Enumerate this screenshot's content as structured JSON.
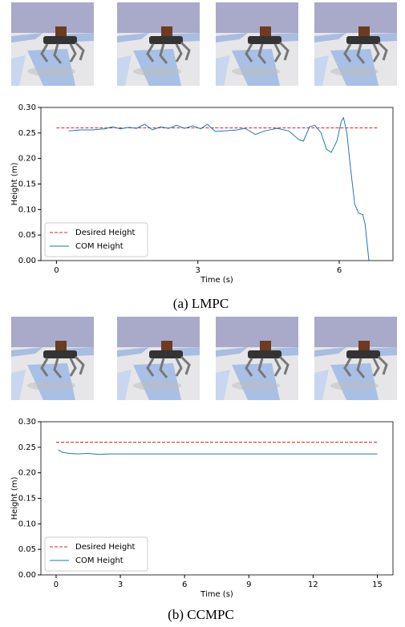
{
  "chart_data": [
    {
      "type": "line",
      "caption": "(a) LMPC",
      "xlabel": "Time (s)",
      "ylabel": "Height (m)",
      "xlim": [
        -0.33,
        7.14
      ],
      "ylim": [
        0,
        0.3
      ],
      "xticks": [
        0,
        3,
        6
      ],
      "yticks": [
        {
          "value": 0,
          "label": "0.00"
        },
        {
          "value": 0.05,
          "label": "0.05"
        },
        {
          "value": 0.1,
          "label": "0.10"
        },
        {
          "value": 0.15,
          "label": "0.15"
        },
        {
          "value": 0.2,
          "label": "0.20"
        },
        {
          "value": 0.25,
          "label": "0.25"
        },
        {
          "value": 0.3,
          "label": "0.30"
        }
      ],
      "legend": "lower left",
      "series": [
        {
          "name": "Desired Height",
          "color": "#d62728",
          "style": "dashed",
          "x": [
            0,
            6.84
          ],
          "values": [
            0.26,
            0.26
          ]
        },
        {
          "name": "COM Height",
          "color": "#1f77b4",
          "style": "solid",
          "x": [
            0.26,
            0.51,
            0.77,
            1.02,
            1.19,
            1.36,
            1.53,
            1.7,
            1.87,
            2.04,
            2.21,
            2.38,
            2.55,
            2.72,
            2.89,
            3.06,
            3.2,
            3.37,
            3.57,
            3.83,
            4.0,
            4.22,
            4.42,
            4.68,
            4.93,
            5.14,
            5.24,
            5.37,
            5.48,
            5.61,
            5.73,
            5.83,
            5.95,
            6.04,
            6.09,
            6.16,
            6.24,
            6.33,
            6.41,
            6.5,
            6.55,
            6.63
          ],
          "values": [
            0.254,
            0.256,
            0.256,
            0.258,
            0.262,
            0.258,
            0.261,
            0.259,
            0.267,
            0.256,
            0.262,
            0.259,
            0.265,
            0.259,
            0.264,
            0.258,
            0.267,
            0.253,
            0.254,
            0.256,
            0.259,
            0.247,
            0.254,
            0.259,
            0.254,
            0.237,
            0.234,
            0.262,
            0.265,
            0.251,
            0.218,
            0.212,
            0.234,
            0.272,
            0.28,
            0.251,
            0.181,
            0.11,
            0.093,
            0.09,
            0.071,
            0
          ]
        }
      ]
    },
    {
      "type": "line",
      "caption": "(b) CCMPC",
      "xlabel": "Time (s)",
      "ylabel": "Height (m)",
      "xlim": [
        -0.71,
        15.73
      ],
      "ylim": [
        0,
        0.3
      ],
      "xticks": [
        0,
        3,
        6,
        9,
        12,
        15
      ],
      "yticks": [
        {
          "value": 0,
          "label": "0.00"
        },
        {
          "value": 0.05,
          "label": "0.05"
        },
        {
          "value": 0.1,
          "label": "0.10"
        },
        {
          "value": 0.15,
          "label": "0.15"
        },
        {
          "value": 0.2,
          "label": "0.20"
        },
        {
          "value": 0.25,
          "label": "0.25"
        },
        {
          "value": 0.3,
          "label": "0.30"
        }
      ],
      "legend": "lower left",
      "series": [
        {
          "name": "Desired Height",
          "color": "#d62728",
          "style": "dashed",
          "x": [
            0,
            15
          ],
          "values": [
            0.26,
            0.26
          ]
        },
        {
          "name": "COM Height",
          "color": "#1f77b4",
          "style": "solid",
          "x": [
            0.1,
            0.3,
            0.6,
            1.0,
            1.5,
            2.0,
            2.5,
            3,
            5,
            7,
            9,
            11,
            13,
            15
          ],
          "values": [
            0.245,
            0.24,
            0.238,
            0.237,
            0.238,
            0.236,
            0.237,
            0.237,
            0.237,
            0.237,
            0.237,
            0.237,
            0.237,
            0.237
          ]
        }
      ]
    }
  ]
}
